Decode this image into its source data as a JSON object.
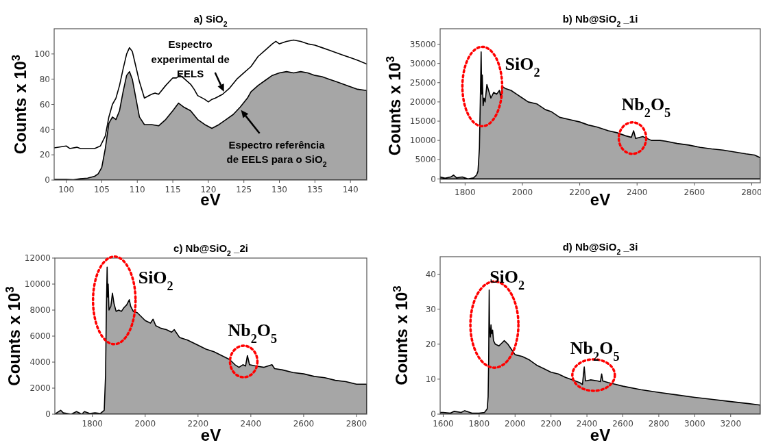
{
  "chart_data": [
    {
      "type": "area",
      "title": "a) SiO$_{2}$",
      "xlabel": "eV",
      "ylabel": "Counts x 10$^{3}$",
      "xlim": [
        98.3,
        142.3
      ],
      "xticks": [
        100,
        105,
        110,
        115,
        120,
        125,
        130,
        135,
        140
      ],
      "ylim": [
        0,
        120
      ],
      "yticks": [
        0,
        20,
        40,
        60,
        80,
        100
      ],
      "series": [
        {
          "type": "line",
          "color": "#000000",
          "x": [
            98.3,
            100,
            100.5,
            101.5,
            102,
            103,
            104,
            104.8,
            105.5,
            106,
            106.5,
            107,
            107.5,
            108,
            108.5,
            108.9,
            109.3,
            109.8,
            110.3,
            111,
            112,
            112.5,
            113,
            114,
            115,
            115.5,
            116,
            116.5,
            117.5,
            118,
            118.5,
            119.5,
            120,
            120.5,
            121,
            122,
            123,
            124,
            125,
            126,
            127,
            128,
            129,
            129.5,
            130,
            131,
            132,
            133,
            134,
            135,
            136,
            137,
            138,
            139,
            140,
            141,
            142.3
          ],
          "values": [
            25.5,
            27,
            25,
            26,
            25,
            25,
            25,
            27,
            35,
            50,
            60,
            65,
            75,
            88,
            100,
            105,
            102,
            90,
            78,
            65,
            68,
            69,
            68,
            75,
            81,
            81,
            83,
            81,
            76,
            72,
            67,
            64,
            62,
            64,
            65,
            68,
            73,
            80,
            85,
            90,
            98,
            103,
            108,
            110,
            108,
            110,
            111,
            110,
            108,
            107,
            105,
            103,
            101,
            99,
            97,
            95,
            92
          ]
        },
        {
          "color": "#a6a6a6",
          "x": [
            98.3,
            100,
            101,
            102,
            103,
            104,
            104.5,
            105,
            105.5,
            106,
            106.5,
            107,
            107.5,
            108,
            108.5,
            108.9,
            109.3,
            109.8,
            110.3,
            111,
            112,
            113,
            114,
            115,
            115.8,
            116.5,
            117.5,
            118.5,
            119.5,
            120.5,
            121.5,
            122.5,
            123.5,
            124.5,
            125.5,
            126,
            127,
            128,
            129,
            130,
            131,
            132,
            133,
            134,
            135,
            136,
            137,
            138,
            139,
            140,
            141,
            142.3
          ],
          "values": [
            0.5,
            0.5,
            0.3,
            1,
            1.5,
            3,
            5,
            10,
            25,
            45,
            50,
            48,
            55,
            70,
            83,
            86,
            80,
            65,
            50,
            44,
            44,
            43,
            48,
            55,
            61,
            58,
            55,
            48,
            44,
            41,
            44,
            48,
            52,
            58,
            65,
            70,
            75,
            79,
            83,
            85,
            86,
            85,
            86,
            85,
            83,
            82,
            80,
            78,
            76,
            74,
            72,
            71
          ]
        }
      ],
      "annotations": [
        {
          "text": "Espectro experimental de EELS",
          "x": 122.2,
          "y": 70
        },
        {
          "text": "Espectro referência de EELS para o SiO$_{2}$",
          "x": 124.6,
          "y": 55.5
        }
      ]
    },
    {
      "type": "area",
      "title": "b) Nb@SiO$_{2}$ _1i",
      "xlabel": "eV",
      "ylabel": "Counts x 10$^{3}$",
      "xlim": [
        1713,
        2830
      ],
      "xticks": [
        1800,
        2000,
        2200,
        2400,
        2600,
        2800
      ],
      "ylim": [
        -1000,
        39000
      ],
      "yticks": [
        0,
        5000,
        10000,
        15000,
        20000,
        25000,
        30000,
        35000
      ],
      "series": [
        {
          "color": "#a6a6a6",
          "x": [
            1713,
            1730,
            1750,
            1760,
            1770,
            1790,
            1810,
            1830,
            1840,
            1845,
            1850,
            1853,
            1856,
            1858,
            1860,
            1863,
            1866,
            1870,
            1876,
            1882,
            1890,
            1900,
            1910,
            1920,
            1925,
            1930,
            1940,
            1960,
            1980,
            2000,
            2020,
            2050,
            2080,
            2100,
            2130,
            2160,
            2200,
            2230,
            2260,
            2300,
            2330,
            2360,
            2380,
            2388,
            2395,
            2420,
            2450,
            2480,
            2500,
            2540,
            2580,
            2620,
            2660,
            2700,
            2740,
            2780,
            2810,
            2830
          ],
          "values": [
            500,
            200,
            500,
            1000,
            300,
            500,
            0,
            300,
            1000,
            2000,
            8000,
            20000,
            33000,
            22000,
            27000,
            19000,
            21000,
            20000,
            24500,
            23000,
            21000,
            22500,
            22000,
            23000,
            21000,
            24000,
            23500,
            23000,
            22000,
            21000,
            20000,
            19500,
            18000,
            17500,
            16000,
            15500,
            14800,
            14000,
            13500,
            12500,
            12000,
            11200,
            10800,
            12500,
            10500,
            11000,
            10000,
            10000,
            9800,
            9200,
            8800,
            8200,
            7800,
            7500,
            7000,
            6500,
            6200,
            5500
          ]
        }
      ],
      "annotations": [
        {
          "text": "SiO$_{2}$",
          "x": 1860,
          "y": 24000
        },
        {
          "text": "Nb$_{2}$O$_{5}$",
          "x": 2384,
          "y": 10600
        }
      ]
    },
    {
      "type": "area",
      "title": "c) Nb@SiO$_{2}$ _2i",
      "xlabel": "eV",
      "ylabel": "Counts x 10$^{3}$",
      "xlim": [
        1658,
        2839
      ],
      "xticks": [
        1800,
        2000,
        2200,
        2400,
        2600,
        2800
      ],
      "ylim": [
        0,
        12000
      ],
      "yticks": [
        0,
        2000,
        4000,
        6000,
        8000,
        10000,
        12000
      ],
      "series": [
        {
          "color": "#a6a6a6",
          "x": [
            1658,
            1680,
            1690,
            1720,
            1740,
            1760,
            1770,
            1790,
            1810,
            1830,
            1845,
            1850,
            1853,
            1856,
            1858,
            1860,
            1863,
            1870,
            1876,
            1882,
            1890,
            1900,
            1910,
            1920,
            1930,
            1940,
            1945,
            1955,
            1970,
            2000,
            2020,
            2030,
            2040,
            2060,
            2080,
            2100,
            2110,
            2130,
            2160,
            2200,
            2230,
            2260,
            2290,
            2320,
            2340,
            2355,
            2370,
            2380,
            2387,
            2395,
            2420,
            2450,
            2480,
            2490,
            2520,
            2560,
            2600,
            2640,
            2680,
            2720,
            2760,
            2800,
            2839
          ],
          "values": [
            0,
            300,
            100,
            0,
            200,
            0,
            200,
            50,
            100,
            50,
            300,
            3000,
            8000,
            11300,
            9000,
            10000,
            8000,
            8300,
            9300,
            8500,
            7900,
            8000,
            7900,
            8200,
            8400,
            8800,
            8300,
            7900,
            7800,
            7200,
            7000,
            7300,
            6800,
            6600,
            6500,
            6300,
            6500,
            5900,
            5700,
            5300,
            5000,
            4800,
            4500,
            4200,
            3800,
            3600,
            3800,
            3700,
            4500,
            3800,
            3700,
            3600,
            3800,
            3500,
            3400,
            3200,
            3100,
            2900,
            2800,
            2600,
            2500,
            2300,
            2300
          ]
        }
      ],
      "annotations": [
        {
          "text": "SiO$_{2}$",
          "x": 1883,
          "y": 8745
        },
        {
          "text": "Nb$_{2}$O$_{5}$",
          "x": 2373,
          "y": 4050
        }
      ]
    },
    {
      "type": "area",
      "title": "d) Nb@SiO$_{2}$ _3i",
      "xlabel": "eV",
      "ylabel": "Counts x 10$^{3}$",
      "xlim": [
        1583,
        3365
      ],
      "xticks": [
        1600,
        1800,
        2000,
        2200,
        2400,
        2600,
        2800,
        3000,
        3200
      ],
      "ylim": [
        0,
        45
      ],
      "yticks": [
        0,
        10,
        20,
        30,
        40
      ],
      "series": [
        {
          "color": "#a6a6a6",
          "x": [
            1583,
            1600,
            1640,
            1660,
            1700,
            1720,
            1760,
            1800,
            1830,
            1845,
            1850,
            1853,
            1856,
            1858,
            1862,
            1866,
            1870,
            1875,
            1880,
            1890,
            1910,
            1930,
            1940,
            1960,
            1980,
            2000,
            2040,
            2080,
            2120,
            2160,
            2200,
            2240,
            2280,
            2320,
            2360,
            2375,
            2385,
            2392,
            2420,
            2460,
            2475,
            2482,
            2488,
            2520,
            2560,
            2600,
            2700,
            2800,
            2900,
            3000,
            3100,
            3200,
            3300,
            3365
          ],
          "values": [
            0.5,
            0.5,
            0.3,
            0.8,
            0.5,
            1,
            0.3,
            0.3,
            0.5,
            1.5,
            5,
            15,
            35.5,
            25,
            22,
            25.5,
            23,
            24,
            21,
            20,
            19.5,
            20.5,
            21,
            20,
            18.5,
            17,
            16.5,
            15.5,
            14,
            13,
            12,
            11.5,
            10.5,
            9.8,
            9,
            8.5,
            13.5,
            9.5,
            9.8,
            9.5,
            9.3,
            11.5,
            9.5,
            9,
            8.5,
            8,
            7,
            6.2,
            5.5,
            4.8,
            4.2,
            3.6,
            3,
            2.6
          ]
        }
      ],
      "annotations": [
        {
          "text": "SiO$_{2}$",
          "x": 1885,
          "y": 25.6
        },
        {
          "text": "Nb$_{2}$O$_{5}$",
          "x": 2437,
          "y": 9.6
        }
      ]
    }
  ]
}
